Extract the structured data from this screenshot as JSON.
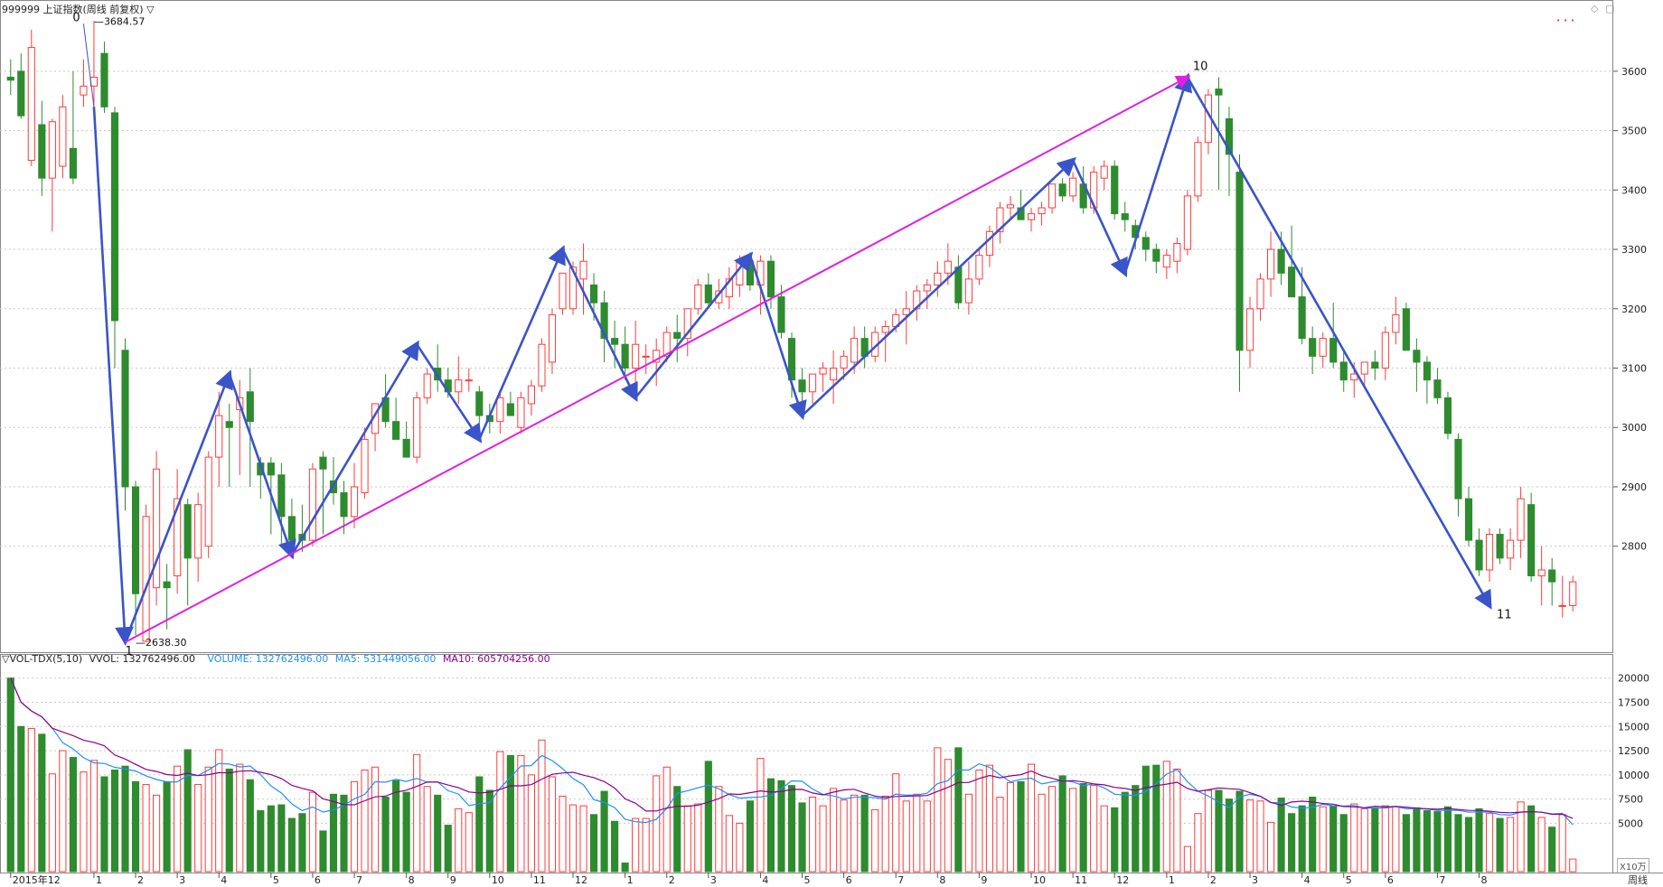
{
  "header": {
    "title": "999999 上证指数(周线 前复权) ▽",
    "window_controls": [
      "◇",
      "▢"
    ],
    "legend_dots": "· · ·"
  },
  "volume_header": {
    "indicator": "▽VOL-TDX(5,10)",
    "vvol": "VVOL: 132762496.00",
    "volume": "VOLUME: 132762496.00",
    "ma5": "MA5: 531449056.00",
    "ma10": "MA10: 605704256.00"
  },
  "volume_unit": "X10万",
  "corner_label": "周线",
  "colors": {
    "up": "#ff3b3b",
    "down": "#2e8b2e",
    "wave": "#3a54c9",
    "trend": "#e11fe0",
    "ma5": "#1e90ff",
    "ma10": "#8b008b",
    "grid": "#c8c8c8"
  },
  "chart_data": {
    "type": "candlestick",
    "weeks": [
      [
        3590,
        3620,
        3560,
        3585
      ],
      [
        3600,
        3630,
        3520,
        3525
      ],
      [
        3450,
        3670,
        3440,
        3640
      ],
      [
        3510,
        3550,
        3390,
        3420
      ],
      [
        3420,
        3520,
        3330,
        3515
      ],
      [
        3440,
        3560,
        3420,
        3540
      ],
      [
        3470,
        3600,
        3410,
        3420
      ],
      [
        3560,
        3620,
        3540,
        3575
      ],
      [
        3575,
        3685,
        3530,
        3590
      ],
      [
        3630,
        3650,
        3530,
        3540
      ],
      [
        3530,
        3540,
        3100,
        3180
      ],
      [
        3130,
        3150,
        2860,
        2900
      ],
      [
        2900,
        2910,
        2650,
        2720
      ],
      [
        2640,
        2870,
        2638.3,
        2850
      ],
      [
        2730,
        2960,
        2700,
        2930
      ],
      [
        2740,
        2770,
        2660,
        2730
      ],
      [
        2750,
        2930,
        2720,
        2880
      ],
      [
        2870,
        2880,
        2700,
        2780
      ],
      [
        2780,
        2890,
        2740,
        2870
      ],
      [
        2800,
        2960,
        2780,
        2950
      ],
      [
        2950,
        3060,
        2900,
        3020
      ],
      [
        3010,
        3040,
        2900,
        3000
      ],
      [
        3030,
        3080,
        2920,
        3050
      ],
      [
        3060,
        3100,
        2900,
        3010
      ],
      [
        2940,
        2950,
        2880,
        2920
      ],
      [
        2940,
        2950,
        2820,
        2920
      ],
      [
        2920,
        2940,
        2800,
        2850
      ],
      [
        2850,
        2880,
        2790,
        2810
      ],
      [
        2820,
        2870,
        2790,
        2810
      ],
      [
        2810,
        2940,
        2800,
        2930
      ],
      [
        2950,
        2960,
        2820,
        2930
      ],
      [
        2910,
        2950,
        2870,
        2890
      ],
      [
        2890,
        2910,
        2820,
        2850
      ],
      [
        2850,
        2940,
        2830,
        2900
      ],
      [
        2890,
        3000,
        2880,
        2980
      ],
      [
        2990,
        3040,
        2960,
        3040
      ],
      [
        3050,
        3090,
        3000,
        3010
      ],
      [
        3010,
        3050,
        2980,
        2980
      ],
      [
        2980,
        3010,
        2950,
        2950
      ],
      [
        2950,
        3060,
        2940,
        3050
      ],
      [
        3050,
        3100,
        3040,
        3090
      ],
      [
        3100,
        3140,
        3060,
        3080
      ],
      [
        3080,
        3100,
        3050,
        3060
      ],
      [
        3060,
        3120,
        3040,
        3080
      ],
      [
        3080,
        3100,
        3060,
        3080
      ],
      [
        3060,
        3070,
        3000,
        3020
      ],
      [
        3020,
        3040,
        2990,
        3010
      ],
      [
        3010,
        3060,
        2990,
        3050
      ],
      [
        3040,
        3060,
        3020,
        3020
      ],
      [
        3000,
        3060,
        2990,
        3050
      ],
      [
        3040,
        3080,
        3020,
        3070
      ],
      [
        3070,
        3150,
        3060,
        3140
      ],
      [
        3110,
        3200,
        3090,
        3190
      ],
      [
        3200,
        3260,
        3190,
        3260
      ],
      [
        3200,
        3280,
        3190,
        3270
      ],
      [
        3250,
        3310,
        3190,
        3280
      ],
      [
        3240,
        3260,
        3180,
        3210
      ],
      [
        3210,
        3230,
        3110,
        3150
      ],
      [
        3150,
        3180,
        3100,
        3140
      ],
      [
        3140,
        3170,
        3080,
        3100
      ],
      [
        3100,
        3180,
        3060,
        3140
      ],
      [
        3120,
        3140,
        3090,
        3120
      ],
      [
        3110,
        3150,
        3070,
        3130
      ],
      [
        3120,
        3170,
        3110,
        3160
      ],
      [
        3160,
        3190,
        3110,
        3150
      ],
      [
        3150,
        3200,
        3120,
        3200
      ],
      [
        3200,
        3250,
        3190,
        3240
      ],
      [
        3240,
        3260,
        3200,
        3210
      ],
      [
        3210,
        3250,
        3200,
        3230
      ],
      [
        3220,
        3270,
        3200,
        3250
      ],
      [
        3240,
        3290,
        3220,
        3280
      ],
      [
        3280,
        3295,
        3230,
        3240
      ],
      [
        3240,
        3290,
        3190,
        3280
      ],
      [
        3280,
        3290,
        3200,
        3220
      ],
      [
        3220,
        3240,
        3150,
        3160
      ],
      [
        3150,
        3160,
        3050,
        3080
      ],
      [
        3080,
        3100,
        3030,
        3060
      ],
      [
        3060,
        3090,
        3040,
        3090
      ],
      [
        3090,
        3110,
        3060,
        3100
      ],
      [
        3080,
        3130,
        3040,
        3100
      ],
      [
        3100,
        3130,
        3080,
        3120
      ],
      [
        3110,
        3170,
        3090,
        3150
      ],
      [
        3150,
        3170,
        3100,
        3120
      ],
      [
        3120,
        3170,
        3110,
        3160
      ],
      [
        3160,
        3180,
        3110,
        3170
      ],
      [
        3170,
        3200,
        3160,
        3190
      ],
      [
        3190,
        3230,
        3140,
        3200
      ],
      [
        3200,
        3240,
        3180,
        3230
      ],
      [
        3230,
        3250,
        3200,
        3240
      ],
      [
        3240,
        3280,
        3220,
        3260
      ],
      [
        3260,
        3310,
        3240,
        3280
      ],
      [
        3270,
        3290,
        3200,
        3210
      ],
      [
        3210,
        3280,
        3190,
        3250
      ],
      [
        3250,
        3300,
        3240,
        3290
      ],
      [
        3290,
        3340,
        3270,
        3330
      ],
      [
        3330,
        3380,
        3310,
        3370
      ],
      [
        3370,
        3390,
        3350,
        3375
      ],
      [
        3370,
        3400,
        3350,
        3350
      ],
      [
        3350,
        3370,
        3330,
        3360
      ],
      [
        3360,
        3380,
        3340,
        3370
      ],
      [
        3370,
        3400,
        3360,
        3410
      ],
      [
        3410,
        3420,
        3380,
        3390
      ],
      [
        3390,
        3430,
        3380,
        3420
      ],
      [
        3410,
        3440,
        3360,
        3370
      ],
      [
        3370,
        3440,
        3360,
        3430
      ],
      [
        3420,
        3450,
        3400,
        3440
      ],
      [
        3440,
        3450,
        3350,
        3360
      ],
      [
        3360,
        3380,
        3330,
        3350
      ],
      [
        3340,
        3350,
        3300,
        3320
      ],
      [
        3320,
        3330,
        3280,
        3300
      ],
      [
        3300,
        3310,
        3260,
        3280
      ],
      [
        3270,
        3300,
        3250,
        3290
      ],
      [
        3280,
        3320,
        3260,
        3310
      ],
      [
        3300,
        3400,
        3290,
        3390
      ],
      [
        3390,
        3490,
        3380,
        3480
      ],
      [
        3480,
        3570,
        3460,
        3560
      ],
      [
        3570,
        3590,
        3400,
        3560
      ],
      [
        3520,
        3540,
        3390,
        3460
      ],
      [
        3430,
        3460,
        3060,
        3130
      ],
      [
        3130,
        3220,
        3100,
        3200
      ],
      [
        3200,
        3260,
        3180,
        3250
      ],
      [
        3250,
        3330,
        3220,
        3300
      ],
      [
        3300,
        3330,
        3240,
        3260
      ],
      [
        3270,
        3340,
        3240,
        3220
      ],
      [
        3220,
        3270,
        3140,
        3150
      ],
      [
        3150,
        3170,
        3090,
        3120
      ],
      [
        3120,
        3160,
        3100,
        3150
      ],
      [
        3150,
        3210,
        3100,
        3110
      ],
      [
        3110,
        3130,
        3060,
        3080
      ],
      [
        3080,
        3110,
        3050,
        3090
      ],
      [
        3090,
        3110,
        3070,
        3110
      ],
      [
        3110,
        3130,
        3080,
        3100
      ],
      [
        3100,
        3170,
        3080,
        3160
      ],
      [
        3160,
        3220,
        3140,
        3190
      ],
      [
        3200,
        3210,
        3140,
        3130
      ],
      [
        3130,
        3150,
        3060,
        3110
      ],
      [
        3110,
        3120,
        3040,
        3080
      ],
      [
        3080,
        3100,
        3040,
        3050
      ],
      [
        3050,
        3060,
        2980,
        2990
      ],
      [
        2980,
        2990,
        2850,
        2880
      ],
      [
        2880,
        2900,
        2800,
        2810
      ],
      [
        2810,
        2830,
        2750,
        2760
      ],
      [
        2760,
        2830,
        2740,
        2820
      ],
      [
        2820,
        2830,
        2770,
        2780
      ],
      [
        2780,
        2830,
        2760,
        2810
      ],
      [
        2810,
        2900,
        2780,
        2880
      ],
      [
        2870,
        2890,
        2740,
        2750
      ],
      [
        2750,
        2800,
        2700,
        2760
      ],
      [
        2760,
        2780,
        2700,
        2740
      ],
      [
        2700,
        2750,
        2680,
        2700
      ],
      [
        2700,
        2750,
        2690,
        2740
      ]
    ],
    "volume": [
      20.0,
      15.0,
      14.8,
      14.2,
      10.1,
      12.5,
      11.8,
      10.3,
      11.5,
      9.8,
      10.5,
      10.9,
      9.3,
      9.0,
      7.9,
      9.3,
      10.9,
      12.6,
      9.0,
      10.8,
      12.6,
      10.6,
      11.1,
      9.5,
      6.3,
      6.8,
      6.9,
      5.5,
      6.0,
      8.2,
      4.2,
      8.0,
      7.9,
      9.3,
      10.5,
      10.8,
      7.7,
      9.4,
      8.2,
      12.1,
      8.8,
      7.9,
      4.8,
      6.5,
      6.1,
      9.8,
      8.4,
      12.4,
      12.0,
      12.0,
      10.0,
      13.6,
      9.8,
      7.8,
      6.9,
      6.8,
      5.9,
      8.3,
      5.2,
      0.9,
      5.5,
      5.5,
      9.9,
      10.8,
      8.8,
      6.8,
      7.0,
      11.4,
      8.8,
      5.8,
      5.0,
      7.3,
      11.7,
      9.6,
      9.4,
      8.9,
      7.1,
      7.7,
      6.8,
      8.6,
      7.4,
      7.9,
      7.9,
      6.4,
      7.8,
      10.1,
      7.3,
      8.0,
      7.3,
      12.8,
      11.6,
      12.8,
      8.0,
      10.5,
      11.0,
      7.7,
      9.2,
      9.3,
      11.1,
      8.0,
      8.8,
      9.9,
      8.6,
      9.1,
      8.9,
      6.8,
      6.6,
      8.2,
      8.9,
      10.9,
      11.0,
      11.4,
      10.6,
      2.6,
      6.0,
      8.4,
      8.4,
      7.5,
      8.3,
      7.4,
      7.3,
      5.1,
      7.6,
      6.0,
      6.8,
      7.7,
      6.7,
      6.8,
      5.9,
      7.0,
      6.5,
      6.6,
      6.8,
      6.7,
      5.9,
      6.6,
      6.3,
      6.2,
      6.7,
      5.9,
      5.6,
      6.5,
      6.0,
      5.5,
      5.6,
      7.2,
      6.8,
      5.6,
      4.6,
      5.9,
      1.3
    ],
    "x_ticks": [
      {
        "label": "2015年12",
        "i": 0
      },
      {
        "label": "1",
        "i": 8
      },
      {
        "label": "2",
        "i": 12
      },
      {
        "label": "3",
        "i": 16
      },
      {
        "label": "4",
        "i": 20
      },
      {
        "label": "5",
        "i": 25
      },
      {
        "label": "6",
        "i": 29
      },
      {
        "label": "7",
        "i": 33
      },
      {
        "label": "8",
        "i": 38
      },
      {
        "label": "9",
        "i": 42
      },
      {
        "label": "10",
        "i": 46
      },
      {
        "label": "11",
        "i": 50
      },
      {
        "label": "12",
        "i": 54
      },
      {
        "label": "1",
        "i": 59
      },
      {
        "label": "2",
        "i": 63
      },
      {
        "label": "3",
        "i": 67
      },
      {
        "label": "4",
        "i": 72
      },
      {
        "label": "5",
        "i": 76
      },
      {
        "label": "6",
        "i": 80
      },
      {
        "label": "7",
        "i": 85
      },
      {
        "label": "8",
        "i": 89
      },
      {
        "label": "9",
        "i": 93
      },
      {
        "label": "10",
        "i": 98
      },
      {
        "label": "11",
        "i": 102
      },
      {
        "label": "12",
        "i": 106
      },
      {
        "label": "1",
        "i": 111
      },
      {
        "label": "2",
        "i": 115
      },
      {
        "label": "3",
        "i": 119
      },
      {
        "label": "4",
        "i": 124
      },
      {
        "label": "5",
        "i": 128
      },
      {
        "label": "6",
        "i": 132
      },
      {
        "label": "7",
        "i": 137
      },
      {
        "label": "8",
        "i": 141
      }
    ],
    "price_ticks": [
      2800,
      2900,
      3000,
      3100,
      3200,
      3300,
      3400,
      3500,
      3600
    ],
    "price_range": [
      2620,
      3720
    ],
    "volume_ticks": [
      {
        "v": 5000,
        "label": "5000"
      },
      {
        "v": 7500,
        "label": "7500"
      },
      {
        "v": 10000,
        "label": "10000"
      },
      {
        "v": 12500,
        "label": "12500"
      },
      {
        "v": 15000,
        "label": "15000"
      },
      {
        "v": 17500,
        "label": "17500"
      },
      {
        "v": 20000,
        "label": "20000"
      }
    ],
    "volume_range": [
      0,
      21000
    ],
    "wave_points": [
      {
        "i": 8,
        "p": 3540
      },
      {
        "i": 11,
        "p": 2640
      },
      {
        "i": 21,
        "p": 3090
      },
      {
        "i": 27,
        "p": 2785
      },
      {
        "i": 39,
        "p": 3140
      },
      {
        "i": 45,
        "p": 2980
      },
      {
        "i": 53,
        "p": 3300
      },
      {
        "i": 60,
        "p": 3050
      },
      {
        "i": 71,
        "p": 3290
      },
      {
        "i": 76,
        "p": 3020
      },
      {
        "i": 102,
        "p": 3450
      },
      {
        "i": 107,
        "p": 3260
      },
      {
        "i": 113,
        "p": 3590
      },
      {
        "i": 142,
        "p": 2700
      }
    ],
    "trend_line": [
      {
        "i": 11,
        "p": 2638.3
      },
      {
        "i": 113,
        "p": 3590
      }
    ],
    "point_labels": [
      {
        "label": "0",
        "i": 7,
        "p": 3684.57,
        "dx": -12,
        "dy": 0
      },
      {
        "label": "1",
        "i": 11,
        "p": 2638.3,
        "dx": 0,
        "dy": 14
      },
      {
        "label": "10",
        "i": 113,
        "p": 3590,
        "dx": 6,
        "dy": -8
      },
      {
        "label": "11",
        "i": 142,
        "p": 2700,
        "dx": 8,
        "dy": 14
      }
    ],
    "value_labels": [
      {
        "label": "3684.57",
        "i": 8,
        "p": 3684.57
      },
      {
        "label": "2638.30",
        "i": 12,
        "p": 2638.3
      }
    ]
  }
}
